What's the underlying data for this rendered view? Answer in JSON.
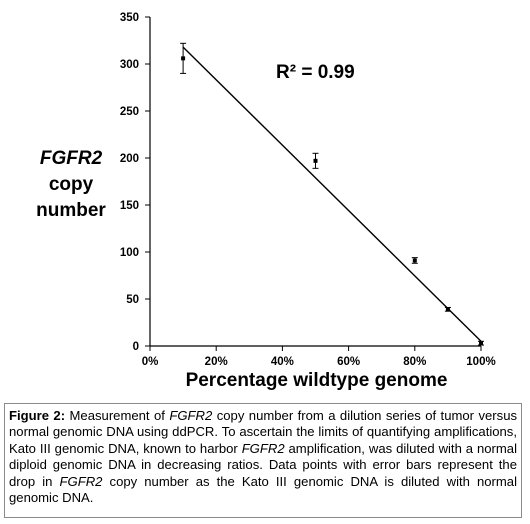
{
  "chart_data": {
    "type": "scatter",
    "yaxis_label_lines": [
      "FGFR2",
      "copy",
      "number"
    ],
    "xlabel": "Percentage wildtype genome",
    "annotation": "R² = 0.99",
    "xlim": [
      0,
      100
    ],
    "ylim": [
      0,
      350
    ],
    "x_ticks": [
      0,
      20,
      40,
      60,
      80,
      100
    ],
    "x_tick_labels": [
      "0%",
      "20%",
      "40%",
      "60%",
      "80%",
      "100%"
    ],
    "y_ticks": [
      0,
      50,
      100,
      150,
      200,
      250,
      300,
      350
    ],
    "y_tick_labels": [
      "0",
      "50",
      "100",
      "150",
      "200",
      "250",
      "300",
      "350"
    ],
    "grid": false,
    "points": [
      {
        "x": 10,
        "y": 306,
        "err": 16
      },
      {
        "x": 50,
        "y": 197,
        "err": 8
      },
      {
        "x": 80,
        "y": 91,
        "err": 3
      },
      {
        "x": 90,
        "y": 39,
        "err": 2
      },
      {
        "x": 100,
        "y": 3,
        "err": 2
      }
    ],
    "trendline": {
      "x": [
        10,
        100
      ],
      "y": [
        318,
        5
      ]
    }
  },
  "caption": {
    "label": "Figure 2:",
    "parts": [
      {
        "text": " Measurement of ",
        "italic": false
      },
      {
        "text": "FGFR2",
        "italic": true
      },
      {
        "text": " copy number from a dilution series of tumor versus normal genomic DNA using ddPCR. To ascertain the limits of quantifying amplifications, Kato III genomic DNA, known to harbor ",
        "italic": false
      },
      {
        "text": "FGFR2",
        "italic": true
      },
      {
        "text": " amplification, was diluted with a normal diploid genomic DNA in decreasing ratios. Data points with error bars represent the drop in ",
        "italic": false
      },
      {
        "text": "FGFR2",
        "italic": true
      },
      {
        "text": " copy number as the Kato III genomic DNA is diluted with normal genomic DNA.",
        "italic": false
      }
    ]
  }
}
